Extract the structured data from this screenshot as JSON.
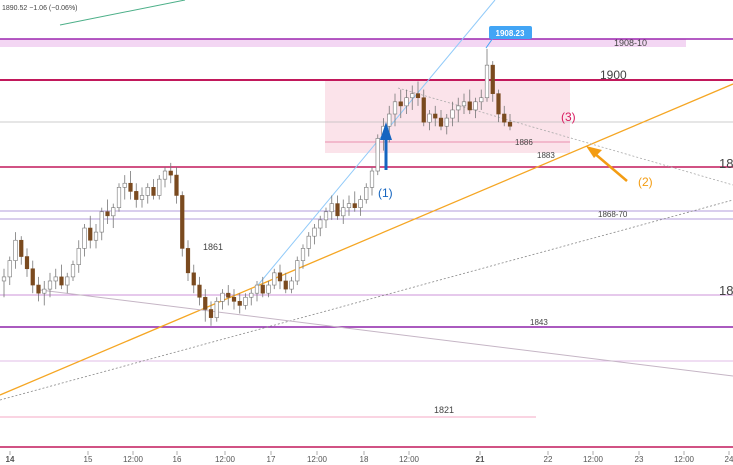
{
  "chart_data": {
    "type": "candlestick",
    "symbol_header": "1890.52  −1.06 (−0.06%)",
    "x_ticks": [
      "14",
      "15",
      "12:00",
      "16",
      "12:00",
      "17",
      "12:00",
      "18",
      "12:00",
      "21",
      "22",
      "12:00",
      "23",
      "12:00",
      "24"
    ],
    "price_labels": [
      {
        "text": "1908-10",
        "price": 1909
      },
      {
        "text": "1900",
        "price": 1900
      },
      {
        "text": "1886",
        "price": 1886
      },
      {
        "text": "1883",
        "price": 1883
      },
      {
        "text": "1868-70",
        "price": 1869
      },
      {
        "text": "1861",
        "price": 1861
      },
      {
        "text": "1843",
        "price": 1843
      },
      {
        "text": "1821",
        "price": 1821
      }
    ],
    "right_edge_labels": [
      {
        "text": "18",
        "price": 1881
      },
      {
        "text": "18",
        "price": 1851
      }
    ],
    "price_badge": {
      "text": "1908.23",
      "color": "#42a5f5"
    },
    "annotations": [
      {
        "text": "(1)",
        "color": "#1565c0"
      },
      {
        "text": "(2)",
        "color": "#f39c12"
      },
      {
        "text": "(3)",
        "color": "#d81b60"
      }
    ],
    "candles": [
      [
        1852,
        1855,
        1848,
        1853
      ],
      [
        1853,
        1858,
        1851,
        1857
      ],
      [
        1857,
        1864,
        1855,
        1862
      ],
      [
        1862,
        1863,
        1856,
        1858
      ],
      [
        1858,
        1860,
        1853,
        1855
      ],
      [
        1855,
        1857,
        1849,
        1851
      ],
      [
        1851,
        1853,
        1847,
        1849
      ],
      [
        1849,
        1852,
        1846,
        1850
      ],
      [
        1850,
        1854,
        1848,
        1852
      ],
      [
        1852,
        1855,
        1850,
        1853
      ],
      [
        1853,
        1856,
        1850,
        1851
      ],
      [
        1851,
        1854,
        1849,
        1853
      ],
      [
        1853,
        1857,
        1852,
        1856
      ],
      [
        1856,
        1862,
        1854,
        1860
      ],
      [
        1860,
        1866,
        1858,
        1865
      ],
      [
        1865,
        1868,
        1860,
        1862
      ],
      [
        1862,
        1866,
        1860,
        1864
      ],
      [
        1864,
        1870,
        1862,
        1869
      ],
      [
        1869,
        1872,
        1866,
        1868
      ],
      [
        1868,
        1871,
        1865,
        1870
      ],
      [
        1870,
        1876,
        1869,
        1875
      ],
      [
        1875,
        1878,
        1872,
        1876
      ],
      [
        1876,
        1879,
        1872,
        1874
      ],
      [
        1874,
        1876,
        1870,
        1872
      ],
      [
        1872,
        1875,
        1870,
        1873
      ],
      [
        1873,
        1876,
        1871,
        1875
      ],
      [
        1875,
        1877,
        1872,
        1873
      ],
      [
        1873,
        1878,
        1872,
        1877
      ],
      [
        1877,
        1880,
        1875,
        1879
      ],
      [
        1879,
        1881,
        1876,
        1878
      ],
      [
        1878,
        1880,
        1871,
        1873
      ],
      [
        1873,
        1874,
        1858,
        1860
      ],
      [
        1860,
        1862,
        1852,
        1854
      ],
      [
        1854,
        1856,
        1849,
        1851
      ],
      [
        1851,
        1853,
        1846,
        1848
      ],
      [
        1848,
        1850,
        1842,
        1845
      ],
      [
        1845,
        1847,
        1841,
        1843
      ],
      [
        1843,
        1848,
        1842,
        1847
      ],
      [
        1847,
        1850,
        1845,
        1849
      ],
      [
        1849,
        1851,
        1846,
        1848
      ],
      [
        1848,
        1850,
        1845,
        1847
      ],
      [
        1847,
        1849,
        1844,
        1846
      ],
      [
        1846,
        1849,
        1845,
        1848
      ],
      [
        1848,
        1850,
        1846,
        1849
      ],
      [
        1849,
        1852,
        1847,
        1851
      ],
      [
        1851,
        1853,
        1848,
        1849
      ],
      [
        1849,
        1852,
        1848,
        1851
      ],
      [
        1851,
        1855,
        1850,
        1854
      ],
      [
        1854,
        1856,
        1850,
        1852
      ],
      [
        1852,
        1854,
        1849,
        1850
      ],
      [
        1850,
        1853,
        1849,
        1852
      ],
      [
        1852,
        1858,
        1851,
        1857
      ],
      [
        1857,
        1861,
        1855,
        1860
      ],
      [
        1860,
        1864,
        1858,
        1863
      ],
      [
        1863,
        1866,
        1861,
        1865
      ],
      [
        1865,
        1868,
        1863,
        1867
      ],
      [
        1867,
        1870,
        1865,
        1869
      ],
      [
        1869,
        1873,
        1867,
        1871
      ],
      [
        1871,
        1873,
        1867,
        1868
      ],
      [
        1868,
        1872,
        1866,
        1870
      ],
      [
        1870,
        1873,
        1868,
        1871
      ],
      [
        1871,
        1874,
        1869,
        1870
      ],
      [
        1870,
        1873,
        1868,
        1872
      ],
      [
        1872,
        1876,
        1871,
        1875
      ],
      [
        1875,
        1880,
        1873,
        1879
      ],
      [
        1879,
        1888,
        1878,
        1887
      ],
      [
        1887,
        1892,
        1884,
        1890
      ],
      [
        1890,
        1895,
        1886,
        1893
      ],
      [
        1893,
        1898,
        1890,
        1896
      ],
      [
        1896,
        1899,
        1892,
        1895
      ],
      [
        1895,
        1899,
        1893,
        1897
      ],
      [
        1897,
        1900,
        1894,
        1898
      ],
      [
        1898,
        1901,
        1895,
        1897
      ],
      [
        1897,
        1899,
        1890,
        1891
      ],
      [
        1891,
        1894,
        1889,
        1893
      ],
      [
        1893,
        1895,
        1890,
        1892
      ],
      [
        1892,
        1894,
        1889,
        1890
      ],
      [
        1890,
        1893,
        1888,
        1892
      ],
      [
        1892,
        1896,
        1890,
        1894
      ],
      [
        1894,
        1897,
        1891,
        1895
      ],
      [
        1895,
        1898,
        1893,
        1896
      ],
      [
        1896,
        1899,
        1893,
        1894
      ],
      [
        1894,
        1897,
        1892,
        1896
      ],
      [
        1896,
        1899,
        1894,
        1897
      ],
      [
        1897,
        1909,
        1896,
        1905
      ],
      [
        1905,
        1906,
        1896,
        1898
      ],
      [
        1898,
        1899,
        1891,
        1893
      ],
      [
        1893,
        1895,
        1890,
        1891
      ],
      [
        1891,
        1893,
        1889,
        1890
      ]
    ],
    "y_range": [
      1810,
      1921
    ]
  }
}
